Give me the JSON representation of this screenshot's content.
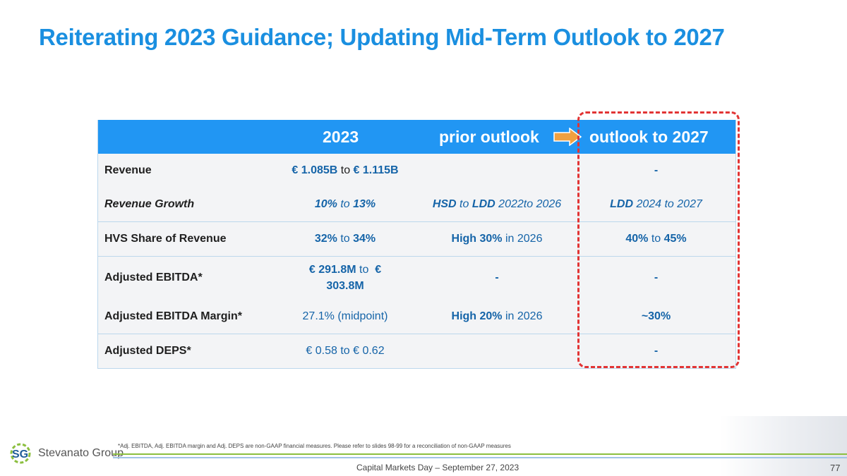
{
  "title": "Reiterating 2023 Guidance; Updating Mid-Term Outlook to 2027",
  "table": {
    "header": {
      "col1": "2023",
      "col2": "prior outlook",
      "col3": "outlook to 2027"
    },
    "rows": [
      {
        "label": "Revenue",
        "c1": {
          "a": "€ 1.085B",
          "b": " to ",
          "c": "€ 1.115B"
        },
        "c3": "-"
      },
      {
        "label": "Revenue Growth",
        "c1": {
          "a": "10%",
          "b": " to ",
          "c": "13%"
        },
        "c2": {
          "a": "HSD",
          "b": " to ",
          "c": "LDD",
          "d": " 2022to 2026"
        },
        "c3": {
          "a": "LDD",
          "b": " 2024 to 2027"
        }
      },
      {
        "label": "HVS Share of Revenue",
        "c1": {
          "a": "32%",
          "b": " to ",
          "c": "34%"
        },
        "c2": {
          "a": "High 30%",
          "b": " in 2026"
        },
        "c3": {
          "a": "40%",
          "b": " to ",
          "c": "45%"
        }
      },
      {
        "label": "Adjusted EBITDA*",
        "c1": {
          "a": "€ 291.8M",
          "b": " to ",
          "c": "€",
          "d": "303.8M"
        },
        "c2": "-",
        "c3": "-"
      },
      {
        "label": "Adjusted EBITDA Margin*",
        "c1": "27.1% (midpoint)",
        "c2": {
          "a": "High 20%",
          "b": " in 2026"
        },
        "c3": "~30%"
      },
      {
        "label": "Adjusted DEPS*",
        "c1": "€ 0.58 to € 0.62",
        "c3": "-"
      }
    ]
  },
  "footnote": "*Adj. EBITDA, Adj. EBITDA margin and Adj. DEPS are non-GAAP financial measures. Please refer to slides 98-99 for a reconciliation of non-GAAP measures",
  "logo": {
    "mark": "SG",
    "name": "Stevanato Group"
  },
  "footer": "Capital Markets Day – September 27, 2023",
  "page_number": "77",
  "colors": {
    "title": "#1a8fe0",
    "header_bg": "#2196f3",
    "value_blue": "#1564a8",
    "highlight_dash": "#e23434",
    "arrow": "#f0a040"
  }
}
